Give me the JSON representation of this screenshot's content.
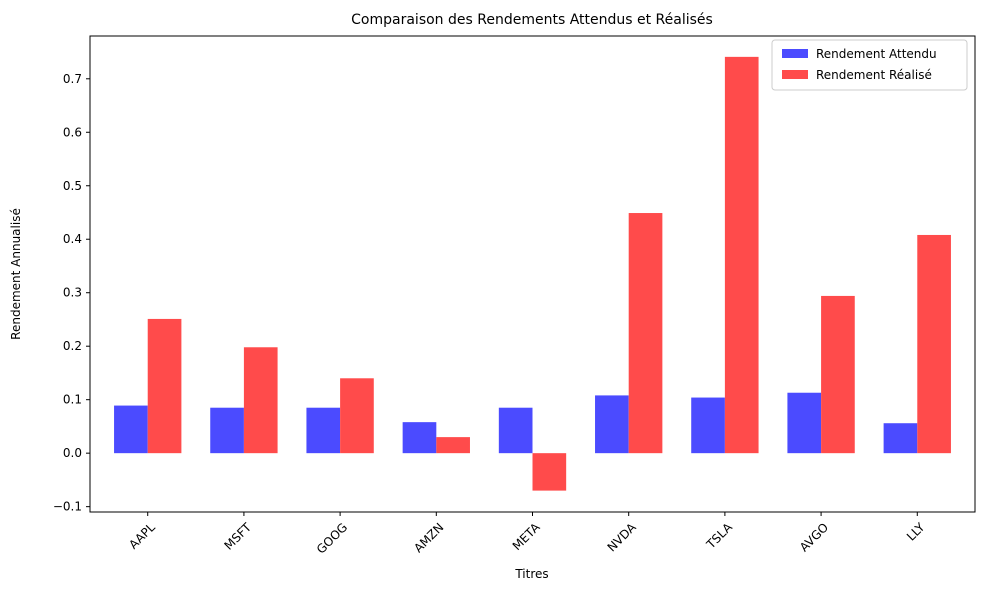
{
  "chart_data": {
    "type": "bar",
    "title": "Comparaison des Rendements Attendus et Réalisés",
    "xlabel": "Titres",
    "ylabel": "Rendement Annualisé",
    "categories": [
      "AAPL",
      "MSFT",
      "GOOG",
      "AMZN",
      "META",
      "NVDA",
      "TSLA",
      "AVGO",
      "LLY"
    ],
    "series": [
      {
        "name": "Rendement Attendu",
        "color": "#4b4bff",
        "values": [
          0.089,
          0.085,
          0.085,
          0.058,
          0.085,
          0.108,
          0.104,
          0.113,
          0.056
        ]
      },
      {
        "name": "Rendement Réalisé",
        "color": "#ff4b4b",
        "values": [
          0.251,
          0.198,
          0.14,
          0.03,
          -0.07,
          0.449,
          0.741,
          0.294,
          0.408
        ]
      }
    ],
    "ylim": [
      -0.11,
      0.78
    ],
    "yticks": [
      -0.1,
      0.0,
      0.1,
      0.2,
      0.3,
      0.4,
      0.5,
      0.6,
      0.7
    ],
    "ytick_labels": [
      "−0.1",
      "0.0",
      "0.1",
      "0.2",
      "0.3",
      "0.4",
      "0.5",
      "0.6",
      "0.7"
    ],
    "grid": false,
    "legend_position": "top-right"
  }
}
